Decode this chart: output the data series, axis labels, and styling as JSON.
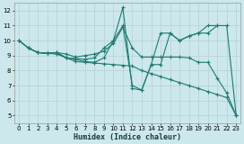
{
  "xlabel": "Humidex (Indice chaleur)",
  "bg_color": "#cce8ec",
  "grid_color": "#b8d4d8",
  "line_color": "#1e7a72",
  "xlim": [
    -0.5,
    23.5
  ],
  "ylim": [
    4.5,
    12.5
  ],
  "xticks": [
    0,
    1,
    2,
    3,
    4,
    5,
    6,
    7,
    8,
    9,
    10,
    11,
    12,
    13,
    14,
    15,
    16,
    17,
    18,
    19,
    20,
    21,
    22,
    23
  ],
  "yticks": [
    5,
    6,
    7,
    8,
    9,
    10,
    11,
    12
  ],
  "lines": [
    {
      "x": [
        0,
        1,
        2,
        3,
        4,
        5,
        6,
        7,
        8,
        9,
        10,
        11,
        12,
        13,
        14,
        15,
        16,
        17,
        18,
        19,
        20,
        21,
        22,
        23
      ],
      "y": [
        10.0,
        9.5,
        9.2,
        9.15,
        9.1,
        8.85,
        8.6,
        8.55,
        8.5,
        8.45,
        8.4,
        8.35,
        8.3,
        8.0,
        7.8,
        7.6,
        7.4,
        7.2,
        7.0,
        6.8,
        6.6,
        6.4,
        6.2,
        5.0
      ]
    },
    {
      "x": [
        0,
        1,
        2,
        3,
        4,
        5,
        6,
        7,
        8,
        9,
        10,
        11,
        12,
        13,
        14,
        15,
        16,
        17,
        18,
        19,
        20,
        21,
        22,
        23
      ],
      "y": [
        10.0,
        9.5,
        9.2,
        9.15,
        9.2,
        9.1,
        8.9,
        9.0,
        9.1,
        9.3,
        9.8,
        10.9,
        9.5,
        8.9,
        8.9,
        8.9,
        8.9,
        8.9,
        8.85,
        8.55,
        8.55,
        7.5,
        6.5,
        5.0
      ]
    },
    {
      "x": [
        0,
        1,
        2,
        3,
        4,
        5,
        6,
        7,
        8,
        9,
        10,
        11,
        12,
        13,
        14,
        15,
        16,
        17,
        18,
        19,
        20,
        21,
        22,
        23
      ],
      "y": [
        10.0,
        9.5,
        9.2,
        9.15,
        9.2,
        8.85,
        8.8,
        8.75,
        8.85,
        9.5,
        10.0,
        12.2,
        6.8,
        6.7,
        8.4,
        10.5,
        10.5,
        10.0,
        10.3,
        10.5,
        10.5,
        11.0,
        11.0,
        5.0
      ]
    },
    {
      "x": [
        1,
        2,
        3,
        4,
        5,
        6,
        7,
        8,
        9,
        10,
        11,
        12,
        13,
        14,
        15,
        16,
        17,
        18,
        19,
        20,
        21
      ],
      "y": [
        9.5,
        9.2,
        9.15,
        9.2,
        8.85,
        8.75,
        8.6,
        8.55,
        8.85,
        10.0,
        11.0,
        7.0,
        6.7,
        8.4,
        8.4,
        10.5,
        10.0,
        10.3,
        10.5,
        11.0,
        11.0
      ]
    }
  ]
}
